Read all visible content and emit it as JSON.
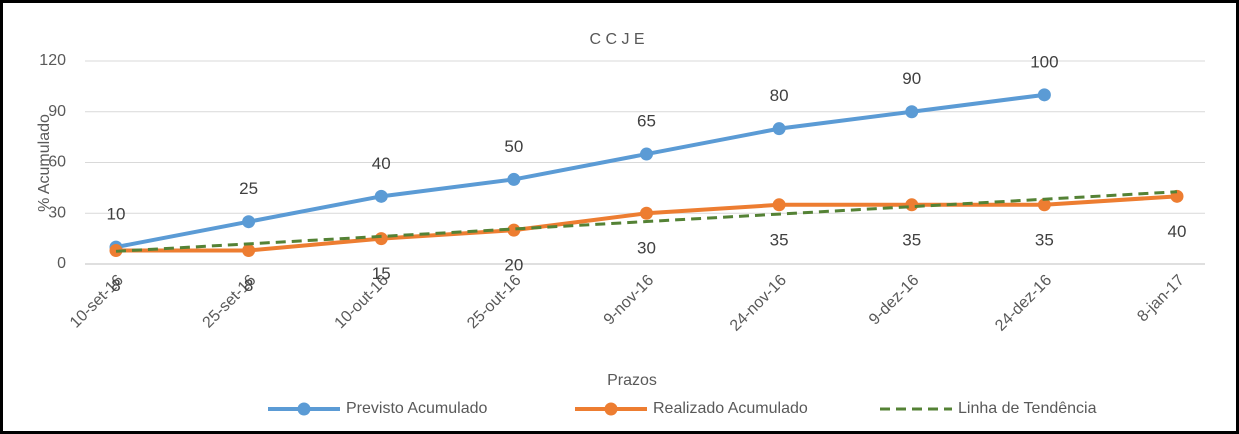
{
  "chart_data": {
    "type": "line",
    "title": "C C J E",
    "x_label": "Prazos",
    "y_label": "% Acumulado",
    "categories": [
      "10-set-16",
      "25-set-16",
      "10-out-16",
      "25-out-16",
      "9-nov-16",
      "24-nov-16",
      "9-dez-16",
      "24-dez-16",
      "8-jan-17"
    ],
    "series": [
      {
        "name": "Previsto Acumulado",
        "color": "#5b9bd5",
        "values": [
          10,
          25,
          40,
          50,
          65,
          80,
          90,
          100,
          null
        ],
        "labels": "above"
      },
      {
        "name": "Realizado Acumulado",
        "color": "#ed7d31",
        "values": [
          8,
          8,
          15,
          20,
          30,
          35,
          35,
          35,
          40
        ],
        "labels": "below"
      },
      {
        "name": "Linha de Tendência",
        "color": "#548235",
        "dashed": true,
        "values": [
          7.5,
          11.9,
          16.3,
          20.7,
          25.1,
          29.5,
          33.9,
          38.3,
          42.7
        ]
      }
    ],
    "ylim": [
      0,
      120
    ],
    "yticks": [
      0,
      30,
      60,
      90,
      120
    ],
    "grid": true,
    "legend": "bottom"
  }
}
